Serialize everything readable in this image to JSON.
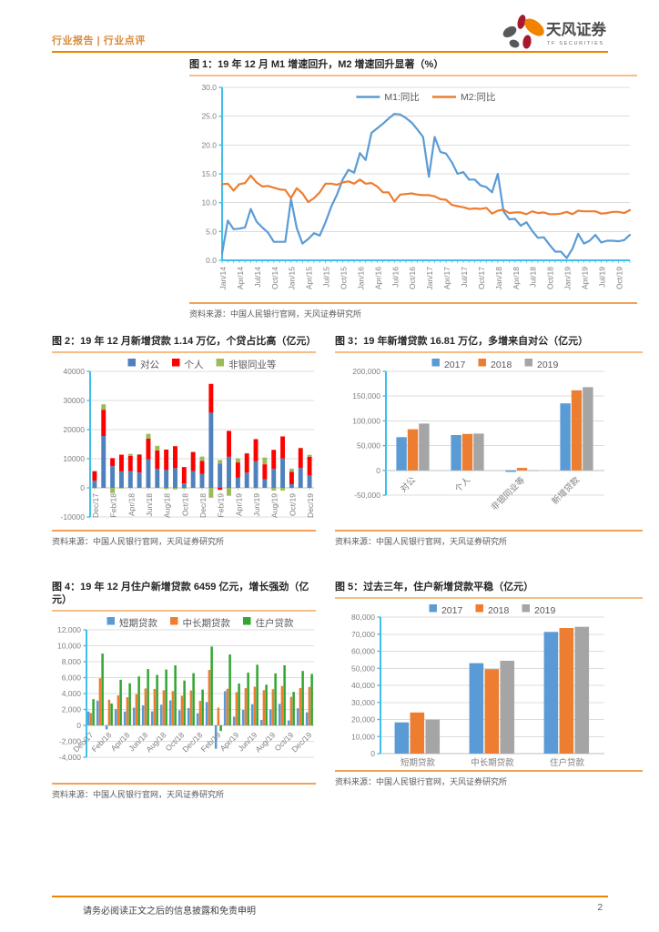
{
  "header": {
    "section_label": "行业报告 | 行业点评",
    "brand_name": "天风证券",
    "brand_sub": "TF SECURITIES"
  },
  "figures": [
    {
      "title": "图 1：19 年 12 月 M1 增速回升，M2 增速回升显著（%）",
      "source": "资料来源：中国人民银行官网，天风证券研究所"
    },
    {
      "title": "图 2：19 年 12 月新增贷款 1.14 万亿，个贷占比高（亿元）",
      "source": "资料来源：中国人民银行官网，天风证券研究所"
    },
    {
      "title": "图 3：19 年新增贷款 16.81 万亿，多增来自对公（亿元）",
      "source": "资料来源：中国人民银行官网，天风证券研究所"
    },
    {
      "title": "图 4：19 年 12 月住户新增贷款 6459 亿元，增长强劲（亿元）",
      "source": "资料来源：中国人民银行官网，天风证券研究所"
    },
    {
      "title": "图 5：过去三年，住户新增贷款平稳（亿元）",
      "source": "资料来源：中国人民银行官网，天风证券研究所"
    }
  ],
  "footer": {
    "disclaimer": "请务必阅读正文之后的信息披露和免责申明",
    "page_number": "2"
  },
  "colors": {
    "accent_orange": "#F08300",
    "axis_cyan": "#3FBFEA",
    "grid_gray": "#DCDCDC",
    "zero_gray": "#BFBFBF",
    "tick_text": "#7F7F7F",
    "legend_text": "#595959",
    "logo_orange": "#F08300",
    "logo_red": "#A6192E",
    "logo_gray": "#58595B"
  },
  "chart_data": [
    {
      "type": "line",
      "title": "19 年 12 月 M1 增速回升，M2 增速回升显著（%）",
      "x": [
        "Jan/14",
        "Feb/14",
        "Mar/14",
        "Apr/14",
        "May/14",
        "Jun/14",
        "Jul/14",
        "Aug/14",
        "Sep/14",
        "Oct/14",
        "Nov/14",
        "Dec/14",
        "Jan/15",
        "Feb/15",
        "Mar/15",
        "Apr/15",
        "May/15",
        "Jun/15",
        "Jul/15",
        "Aug/15",
        "Sep/15",
        "Oct/15",
        "Nov/15",
        "Dec/15",
        "Jan/16",
        "Feb/16",
        "Mar/16",
        "Apr/16",
        "May/16",
        "Jun/16",
        "Jul/16",
        "Aug/16",
        "Sep/16",
        "Oct/16",
        "Nov/16",
        "Dec/16",
        "Jan/17",
        "Feb/17",
        "Mar/17",
        "Apr/17",
        "May/17",
        "Jun/17",
        "Jul/17",
        "Aug/17",
        "Sep/17",
        "Oct/17",
        "Nov/17",
        "Dec/17",
        "Jan/18",
        "Feb/18",
        "Mar/18",
        "Apr/18",
        "May/18",
        "Jun/18",
        "Jul/18",
        "Aug/18",
        "Sep/18",
        "Oct/18",
        "Nov/18",
        "Dec/18",
        "Jan/19",
        "Feb/19",
        "Mar/19",
        "Apr/19",
        "May/19",
        "Jun/19",
        "Jul/19",
        "Aug/19",
        "Sep/19",
        "Oct/19",
        "Nov/19",
        "Dec/19"
      ],
      "tick_every": 3,
      "ylim": [
        0,
        30
      ],
      "ystep": 5,
      "y_decimals": 1,
      "grid": true,
      "legend_position": "top",
      "series": [
        {
          "name": "M1:同比",
          "color": "#5B9BD5",
          "values": [
            1.2,
            6.9,
            5.4,
            5.5,
            5.7,
            8.9,
            6.7,
            5.7,
            4.8,
            3.2,
            3.2,
            3.2,
            10.6,
            5.6,
            2.9,
            3.7,
            4.7,
            4.3,
            6.6,
            9.3,
            11.4,
            14.0,
            15.7,
            15.2,
            18.6,
            17.4,
            22.1,
            22.9,
            23.7,
            24.6,
            25.4,
            25.3,
            24.7,
            23.9,
            22.7,
            21.4,
            14.5,
            21.4,
            18.8,
            18.5,
            17.0,
            15.0,
            15.3,
            14.0,
            14.0,
            13.0,
            12.7,
            11.8,
            15.0,
            8.5,
            7.1,
            7.2,
            6.0,
            6.6,
            5.1,
            3.9,
            4.0,
            2.7,
            1.5,
            1.5,
            0.4,
            2.0,
            4.6,
            2.9,
            3.4,
            4.4,
            3.1,
            3.4,
            3.4,
            3.3,
            3.5,
            4.4
          ]
        },
        {
          "name": "M2:同比",
          "color": "#ED7D31",
          "values": [
            13.2,
            13.3,
            12.1,
            13.2,
            13.4,
            14.7,
            13.5,
            12.8,
            12.9,
            12.6,
            12.3,
            12.2,
            10.8,
            12.5,
            11.6,
            10.1,
            10.8,
            11.8,
            13.3,
            13.3,
            13.1,
            13.5,
            13.7,
            13.3,
            14.0,
            13.3,
            13.4,
            12.8,
            11.8,
            11.8,
            10.2,
            11.4,
            11.5,
            11.6,
            11.4,
            11.3,
            11.3,
            11.1,
            10.6,
            10.5,
            9.6,
            9.4,
            9.2,
            8.9,
            9.0,
            8.9,
            9.1,
            8.1,
            8.6,
            8.8,
            8.2,
            8.3,
            8.3,
            8.0,
            8.5,
            8.2,
            8.3,
            8.0,
            8.0,
            8.1,
            8.4,
            8.0,
            8.6,
            8.5,
            8.5,
            8.5,
            8.1,
            8.2,
            8.4,
            8.4,
            8.2,
            8.7
          ]
        }
      ]
    },
    {
      "type": "bar",
      "stacked": true,
      "title": "19 年 12 月新增贷款 1.14 万亿，个贷占比高（亿元）",
      "categories": [
        "Dec/17",
        "Jan/18",
        "Feb/18",
        "Mar/18",
        "Apr/18",
        "May/18",
        "Jun/18",
        "Jul/18",
        "Aug/18",
        "Sep/18",
        "Oct/18",
        "Nov/18",
        "Dec/18",
        "Jan/19",
        "Feb/19",
        "Mar/19",
        "Apr/19",
        "May/19",
        "Jun/19",
        "Jul/19",
        "Aug/19",
        "Sep/19",
        "Oct/19",
        "Nov/19",
        "Dec/19"
      ],
      "tick_every": 2,
      "ylim": [
        -10000,
        40000
      ],
      "ystep": 10000,
      "comma": false,
      "legend_position": "top",
      "series": [
        {
          "name": "对公",
          "color": "#4F81BD",
          "values": [
            2432,
            17800,
            7447,
            5654,
            5726,
            5255,
            9819,
            6501,
            6127,
            6772,
            1503,
            5764,
            4733,
            25800,
            8341,
            10659,
            3471,
            5224,
            9105,
            2974,
            6513,
            10113,
            1262,
            6794,
            4244
          ]
        },
        {
          "name": "个人",
          "color": "#FF0000",
          "values": [
            3294,
            9016,
            2751,
            5733,
            5284,
            6143,
            7073,
            6344,
            7012,
            7544,
            5636,
            6560,
            4504,
            9898,
            -706,
            8908,
            5258,
            6625,
            7617,
            5112,
            6538,
            7550,
            4210,
            6831,
            6459
          ]
        },
        {
          "name": "非银同业等",
          "color": "#9BBB59",
          "values": [
            -62,
            1862,
            -1768,
            -232,
            655,
            142,
            1642,
            1582,
            -398,
            -568,
            -268,
            80,
            1500,
            -3386,
            1221,
            -2714,
            1417,
            83,
            -161,
            2328,
            -945,
            -921,
            1123,
            159,
            647
          ]
        }
      ]
    },
    {
      "type": "bar",
      "stacked": false,
      "title": "19 年新增贷款 16.81 万亿，多增来自对公（亿元）",
      "categories": [
        "对公",
        "个人",
        "非银同业等",
        "新增贷款"
      ],
      "tick_every": 1,
      "ylim": [
        -50000,
        200000
      ],
      "ystep": 50000,
      "comma": true,
      "legend_position": "top",
      "series": [
        {
          "name": "2017",
          "color": "#5B9BD5",
          "values": [
            67100,
            71300,
            -3100,
            135300
          ]
        },
        {
          "name": "2018",
          "color": "#ED7D31",
          "values": [
            83100,
            73600,
            5000,
            161700
          ]
        },
        {
          "name": "2019",
          "color": "#A5A5A5",
          "values": [
            94500,
            74300,
            -700,
            168100
          ]
        }
      ]
    },
    {
      "type": "bar",
      "stacked": false,
      "title": "19 年 12 月住户新增贷款 6459 亿元，增长强劲（亿元）",
      "categories": [
        "Dec/17",
        "Jan/18",
        "Feb/18",
        "Mar/18",
        "Apr/18",
        "May/18",
        "Jun/18",
        "Jul/18",
        "Aug/18",
        "Sep/18",
        "Oct/18",
        "Nov/18",
        "Dec/18",
        "Jan/19",
        "Feb/19",
        "Mar/19",
        "Apr/19",
        "May/19",
        "Jun/19",
        "Jul/19",
        "Aug/19",
        "Sep/19",
        "Oct/19",
        "Nov/19",
        "Dec/19"
      ],
      "tick_every": 2,
      "ylim": [
        -4000,
        12000
      ],
      "ystep": 2000,
      "comma": true,
      "legend_position": "top",
      "series": [
        {
          "name": "短期贷款",
          "color": "#5B9BD5",
          "values": [
            1745,
            3106,
            -500,
            2032,
            1741,
            2220,
            2515,
            1768,
            2598,
            3134,
            1907,
            2169,
            1524,
            2930,
            -2932,
            4294,
            1093,
            1948,
            2667,
            695,
            1998,
            2707,
            623,
            2142,
            1635
          ]
        },
        {
          "name": "中长期贷款",
          "color": "#ED7D31",
          "values": [
            1549,
            5910,
            3220,
            3770,
            3543,
            3923,
            4634,
            4576,
            4415,
            4309,
            3730,
            4391,
            3079,
            6969,
            2226,
            4605,
            4165,
            4677,
            4858,
            4417,
            4540,
            4943,
            3587,
            4689,
            4824
          ]
        },
        {
          "name": "住户贷款",
          "color": "#33A532",
          "values": [
            3294,
            9016,
            2751,
            5733,
            5284,
            6143,
            7073,
            6344,
            7012,
            7544,
            5636,
            6560,
            4504,
            9898,
            -706,
            8908,
            5258,
            6625,
            7617,
            5112,
            6538,
            7550,
            4210,
            6831,
            6459
          ]
        }
      ]
    },
    {
      "type": "bar",
      "stacked": false,
      "title": "过去三年，住户新增贷款平稳（亿元）",
      "categories": [
        "短期贷款",
        "中长期贷款",
        "住户贷款"
      ],
      "tick_every": 1,
      "ylim": [
        0,
        80000
      ],
      "ystep": 10000,
      "comma": true,
      "legend_position": "top",
      "series": [
        {
          "name": "2017",
          "color": "#5B9BD5",
          "values": [
            18300,
            53000,
            71300
          ]
        },
        {
          "name": "2018",
          "color": "#ED7D31",
          "values": [
            24100,
            49500,
            73600
          ]
        },
        {
          "name": "2019",
          "color": "#A5A5A5",
          "values": [
            19900,
            54400,
            74300
          ]
        }
      ]
    }
  ]
}
